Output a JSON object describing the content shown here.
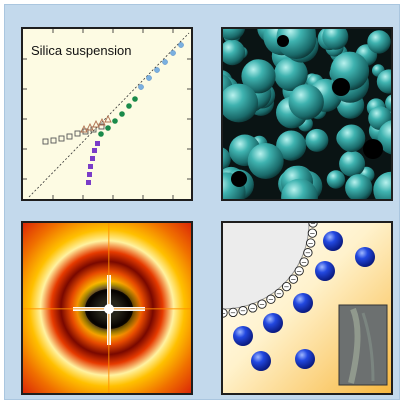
{
  "panels": {
    "silica": {
      "title": "Silica suspension",
      "marker_colors": {
        "open_squares": "#555555",
        "brown_triangles": "#b07050",
        "green_circles": "#1a8a4a",
        "purple_squares": "#7a3cc8",
        "blue_circles": "#7ab0e0"
      }
    },
    "spheres": {
      "sphere_color": "#2e9a9a",
      "background": "#0d1a1a"
    },
    "scattering": {
      "colors": [
        "#e8300c",
        "#f7a400",
        "#ffffff",
        "#000000"
      ]
    },
    "interface": {
      "particle_color": "#1a3fd6",
      "bead_label": "−",
      "background_gradient": [
        "#ffffff",
        "#f8c050"
      ]
    }
  }
}
